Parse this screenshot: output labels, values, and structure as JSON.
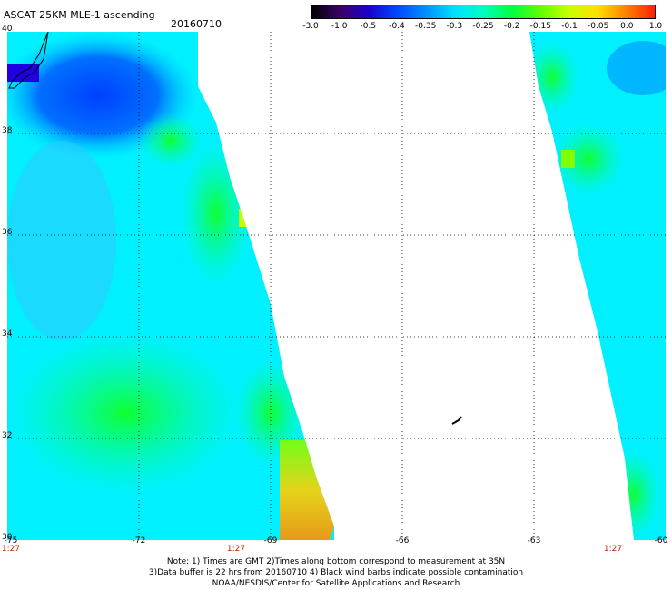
{
  "header": {
    "title": "ASCAT 25KM MLE-1 ascending",
    "date": "20160710"
  },
  "colorbar": {
    "ticks": [
      "-3.0",
      "-1.0",
      "-0.5",
      "-0.4",
      "-0.35",
      "-0.3",
      "-0.25",
      "-0.2",
      "-0.15",
      "-0.1",
      "-0.05",
      "0.0",
      "1.0"
    ],
    "colors": [
      "#000000",
      "#3a0068",
      "#1a00d0",
      "#0048ff",
      "#0090ff",
      "#00e0ff",
      "#00ffc0",
      "#00ff40",
      "#60ff00",
      "#c8ff00",
      "#ffe000",
      "#ff8000",
      "#ff2000"
    ]
  },
  "map": {
    "lat_labels": [
      "40",
      "38",
      "36",
      "34",
      "32",
      "30"
    ],
    "lon_labels": [
      "-75",
      "-72",
      "-69",
      "-66",
      "-63",
      "-60"
    ],
    "time_labels": [
      "1:27",
      "1:27",
      "1:27"
    ]
  },
  "footer": {
    "line1": "Note: 1) Times are GMT 2)Times along bottom correspond to measurement at 35N",
    "line2": "3)Data buffer is 22 hrs from 20160710 4) Black wind barbs indicate possible contamination",
    "line3": "NOAA/NESDIS/Center for Satellite Applications and Research"
  }
}
